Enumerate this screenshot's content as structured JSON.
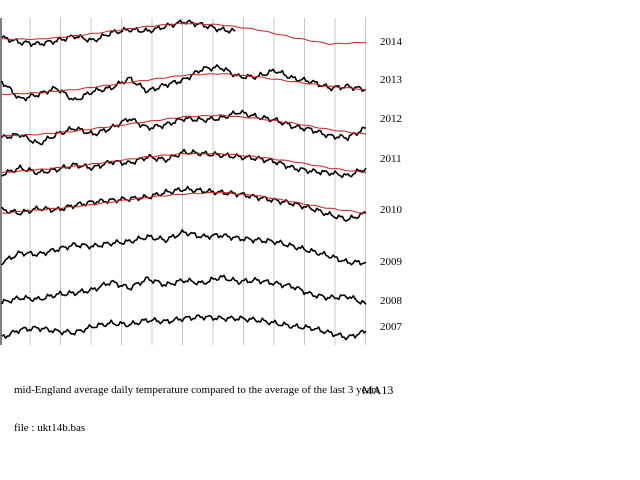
{
  "chart_data": {
    "type": "line",
    "title": "",
    "xlabel": "",
    "ylabel": "",
    "grid": {
      "vertical": true,
      "horizontal": false
    },
    "legend": "none",
    "colors": {
      "actual": "#000000",
      "average": "#cc2222",
      "grid": "#c8c8c8"
    },
    "series": [
      {
        "name": "2014",
        "color": "#000000",
        "x": [
          0,
          5,
          10,
          15,
          20,
          25,
          30,
          35,
          40,
          45,
          50,
          55,
          60,
          64
        ],
        "values": [
          2.0,
          0.5,
          0.0,
          1.0,
          2.5,
          1.0,
          3.5,
          4.5,
          4.0,
          5.5,
          7.0,
          6.0,
          4.5,
          4.0
        ]
      },
      {
        "name": "2014",
        "color": "#cc2222",
        "x": [
          0,
          10,
          20,
          30,
          40,
          50,
          60,
          70,
          80,
          90,
          100
        ],
        "values": [
          1.5,
          1.5,
          2.5,
          4.0,
          5.5,
          6.5,
          6.0,
          4.5,
          2.0,
          0.0,
          0.5
        ]
      },
      {
        "name": "2013",
        "color": "#000000",
        "x": [
          0,
          5,
          10,
          15,
          20,
          25,
          30,
          35,
          40,
          45,
          50,
          55,
          60,
          65,
          70,
          75,
          80,
          85,
          90,
          95,
          100
        ],
        "values": [
          2.0,
          -3.5,
          -2.0,
          0.0,
          -4.0,
          -1.0,
          0.0,
          3.0,
          -1.0,
          1.0,
          2.5,
          6.0,
          6.5,
          3.5,
          3.5,
          5.5,
          3.0,
          2.0,
          0.0,
          0.5,
          -0.5
        ]
      },
      {
        "name": "2013",
        "color": "#cc2222",
        "x": [
          0,
          10,
          20,
          30,
          40,
          50,
          60,
          70,
          80,
          90,
          100
        ],
        "values": [
          -2.0,
          -1.5,
          -0.5,
          1.0,
          2.5,
          4.0,
          4.5,
          3.5,
          2.0,
          0.5,
          -0.5
        ]
      },
      {
        "name": "2012",
        "color": "#000000",
        "x": [
          0,
          5,
          10,
          15,
          20,
          25,
          30,
          35,
          40,
          45,
          50,
          55,
          60,
          65,
          70,
          75,
          80,
          85,
          90,
          95,
          100
        ],
        "values": [
          -3.0,
          -2.0,
          -5.0,
          -2.0,
          0.0,
          -2.0,
          0.0,
          3.0,
          0.0,
          1.0,
          3.0,
          2.5,
          3.0,
          5.0,
          3.5,
          2.5,
          0.5,
          -0.5,
          -2.5,
          -3.0,
          0.0
        ]
      },
      {
        "name": "2012",
        "color": "#cc2222",
        "x": [
          0,
          10,
          20,
          30,
          40,
          50,
          60,
          70,
          80,
          90,
          100
        ],
        "values": [
          -2.5,
          -2.0,
          -1.0,
          0.5,
          2.0,
          3.5,
          4.0,
          3.0,
          1.5,
          -0.5,
          -2.0
        ]
      },
      {
        "name": "2011",
        "color": "#000000",
        "x": [
          0,
          5,
          10,
          15,
          20,
          25,
          30,
          35,
          40,
          45,
          50,
          55,
          60,
          65,
          70,
          75,
          80,
          85,
          90,
          95,
          100
        ],
        "values": [
          -2.0,
          0.0,
          -1.5,
          -0.5,
          1.0,
          0.0,
          2.0,
          1.5,
          3.5,
          2.5,
          5.0,
          4.5,
          4.0,
          3.5,
          3.0,
          2.0,
          0.0,
          -1.0,
          -1.5,
          -2.5,
          0.0
        ]
      },
      {
        "name": "2011",
        "color": "#cc2222",
        "x": [
          0,
          10,
          20,
          30,
          40,
          50,
          60,
          70,
          80,
          90,
          100
        ],
        "values": [
          -1.5,
          -0.5,
          0.5,
          2.0,
          3.5,
          4.5,
          4.5,
          3.5,
          2.0,
          0.0,
          -1.5
        ]
      },
      {
        "name": "2010",
        "color": "#000000",
        "x": [
          0,
          5,
          10,
          15,
          20,
          25,
          30,
          35,
          40,
          45,
          50,
          55,
          60,
          65,
          70,
          75,
          80,
          85,
          90,
          95,
          100
        ],
        "values": [
          0.0,
          -1.0,
          0.5,
          0.0,
          1.5,
          2.5,
          3.0,
          3.5,
          4.0,
          5.5,
          6.5,
          6.0,
          5.5,
          5.0,
          4.0,
          3.0,
          2.0,
          0.5,
          -1.5,
          -3.0,
          -1.0
        ]
      },
      {
        "name": "2010",
        "color": "#cc2222",
        "x": [
          0,
          10,
          20,
          30,
          40,
          50,
          60,
          70,
          80,
          90,
          100
        ],
        "values": [
          -1.0,
          0.0,
          1.0,
          2.5,
          4.0,
          5.0,
          5.5,
          4.5,
          2.5,
          0.5,
          -1.0
        ]
      },
      {
        "name": "2009",
        "color": "#000000",
        "x": [
          0,
          5,
          10,
          15,
          20,
          25,
          30,
          35,
          40,
          45,
          50,
          55,
          60,
          65,
          70,
          75,
          80,
          85,
          90,
          95,
          100
        ],
        "values": [
          -2.0,
          1.0,
          0.5,
          2.0,
          3.5,
          3.0,
          4.0,
          4.5,
          6.0,
          5.0,
          7.5,
          6.0,
          6.5,
          5.5,
          5.0,
          4.5,
          3.0,
          1.5,
          0.0,
          -2.0,
          -2.0
        ]
      },
      {
        "name": "2008",
        "color": "#000000",
        "x": [
          0,
          5,
          10,
          15,
          20,
          25,
          30,
          35,
          40,
          45,
          50,
          55,
          60,
          65,
          70,
          75,
          80,
          85,
          90,
          95,
          100
        ],
        "values": [
          -3.0,
          -1.5,
          -2.0,
          -0.5,
          0.0,
          1.0,
          3.5,
          1.5,
          4.5,
          2.5,
          4.0,
          3.0,
          5.0,
          3.5,
          4.0,
          3.0,
          2.0,
          -0.5,
          -1.5,
          -1.0,
          -3.5
        ]
      },
      {
        "name": "2007",
        "color": "#000000",
        "x": [
          0,
          5,
          10,
          15,
          20,
          25,
          30,
          35,
          40,
          45,
          50,
          55,
          60,
          65,
          70,
          75,
          80,
          85,
          90,
          95,
          100
        ],
        "values": [
          -3.0,
          -0.5,
          0.0,
          -1.0,
          -1.5,
          0.5,
          1.5,
          1.0,
          2.5,
          2.0,
          3.0,
          3.5,
          3.0,
          3.0,
          2.5,
          1.5,
          0.5,
          0.0,
          -1.5,
          -3.0,
          -1.0
        ]
      }
    ]
  },
  "texts": {
    "caption": "mid-England average daily temperature compared to the average of the last 3 years",
    "caption_tag": "MA13",
    "file_note": "file : ukt14b.bas"
  }
}
